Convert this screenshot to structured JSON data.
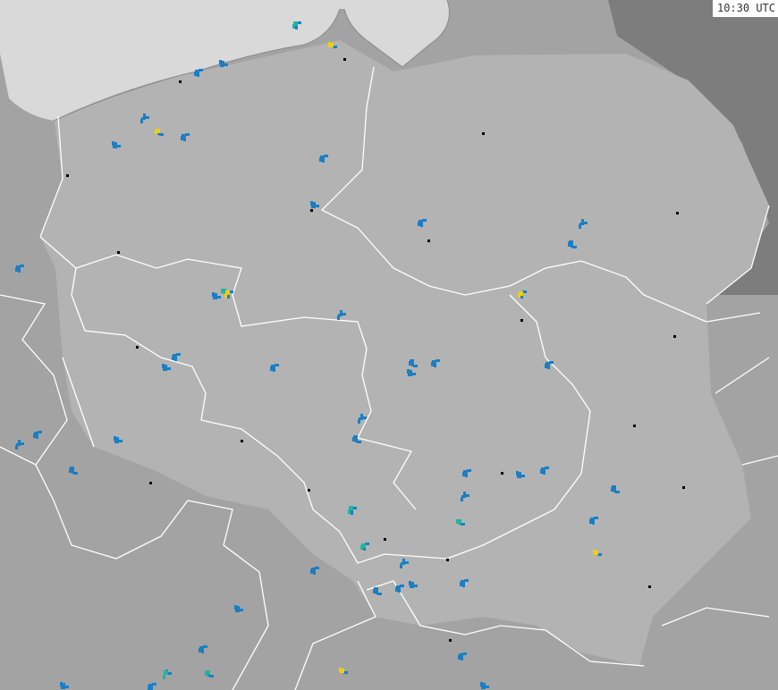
{
  "timestamp": "10:30 UTC",
  "colors": {
    "sea": "#d9d9d9",
    "radar_coverage": "#b3b3b3",
    "outside_land": "#a3a3a3",
    "out_of_range": "#7d7d7d",
    "borders": "#ffffff",
    "echo_light": "#1a7fc4",
    "echo_medium": "#1fb5a0",
    "echo_strong": "#f0d000"
  }
}
